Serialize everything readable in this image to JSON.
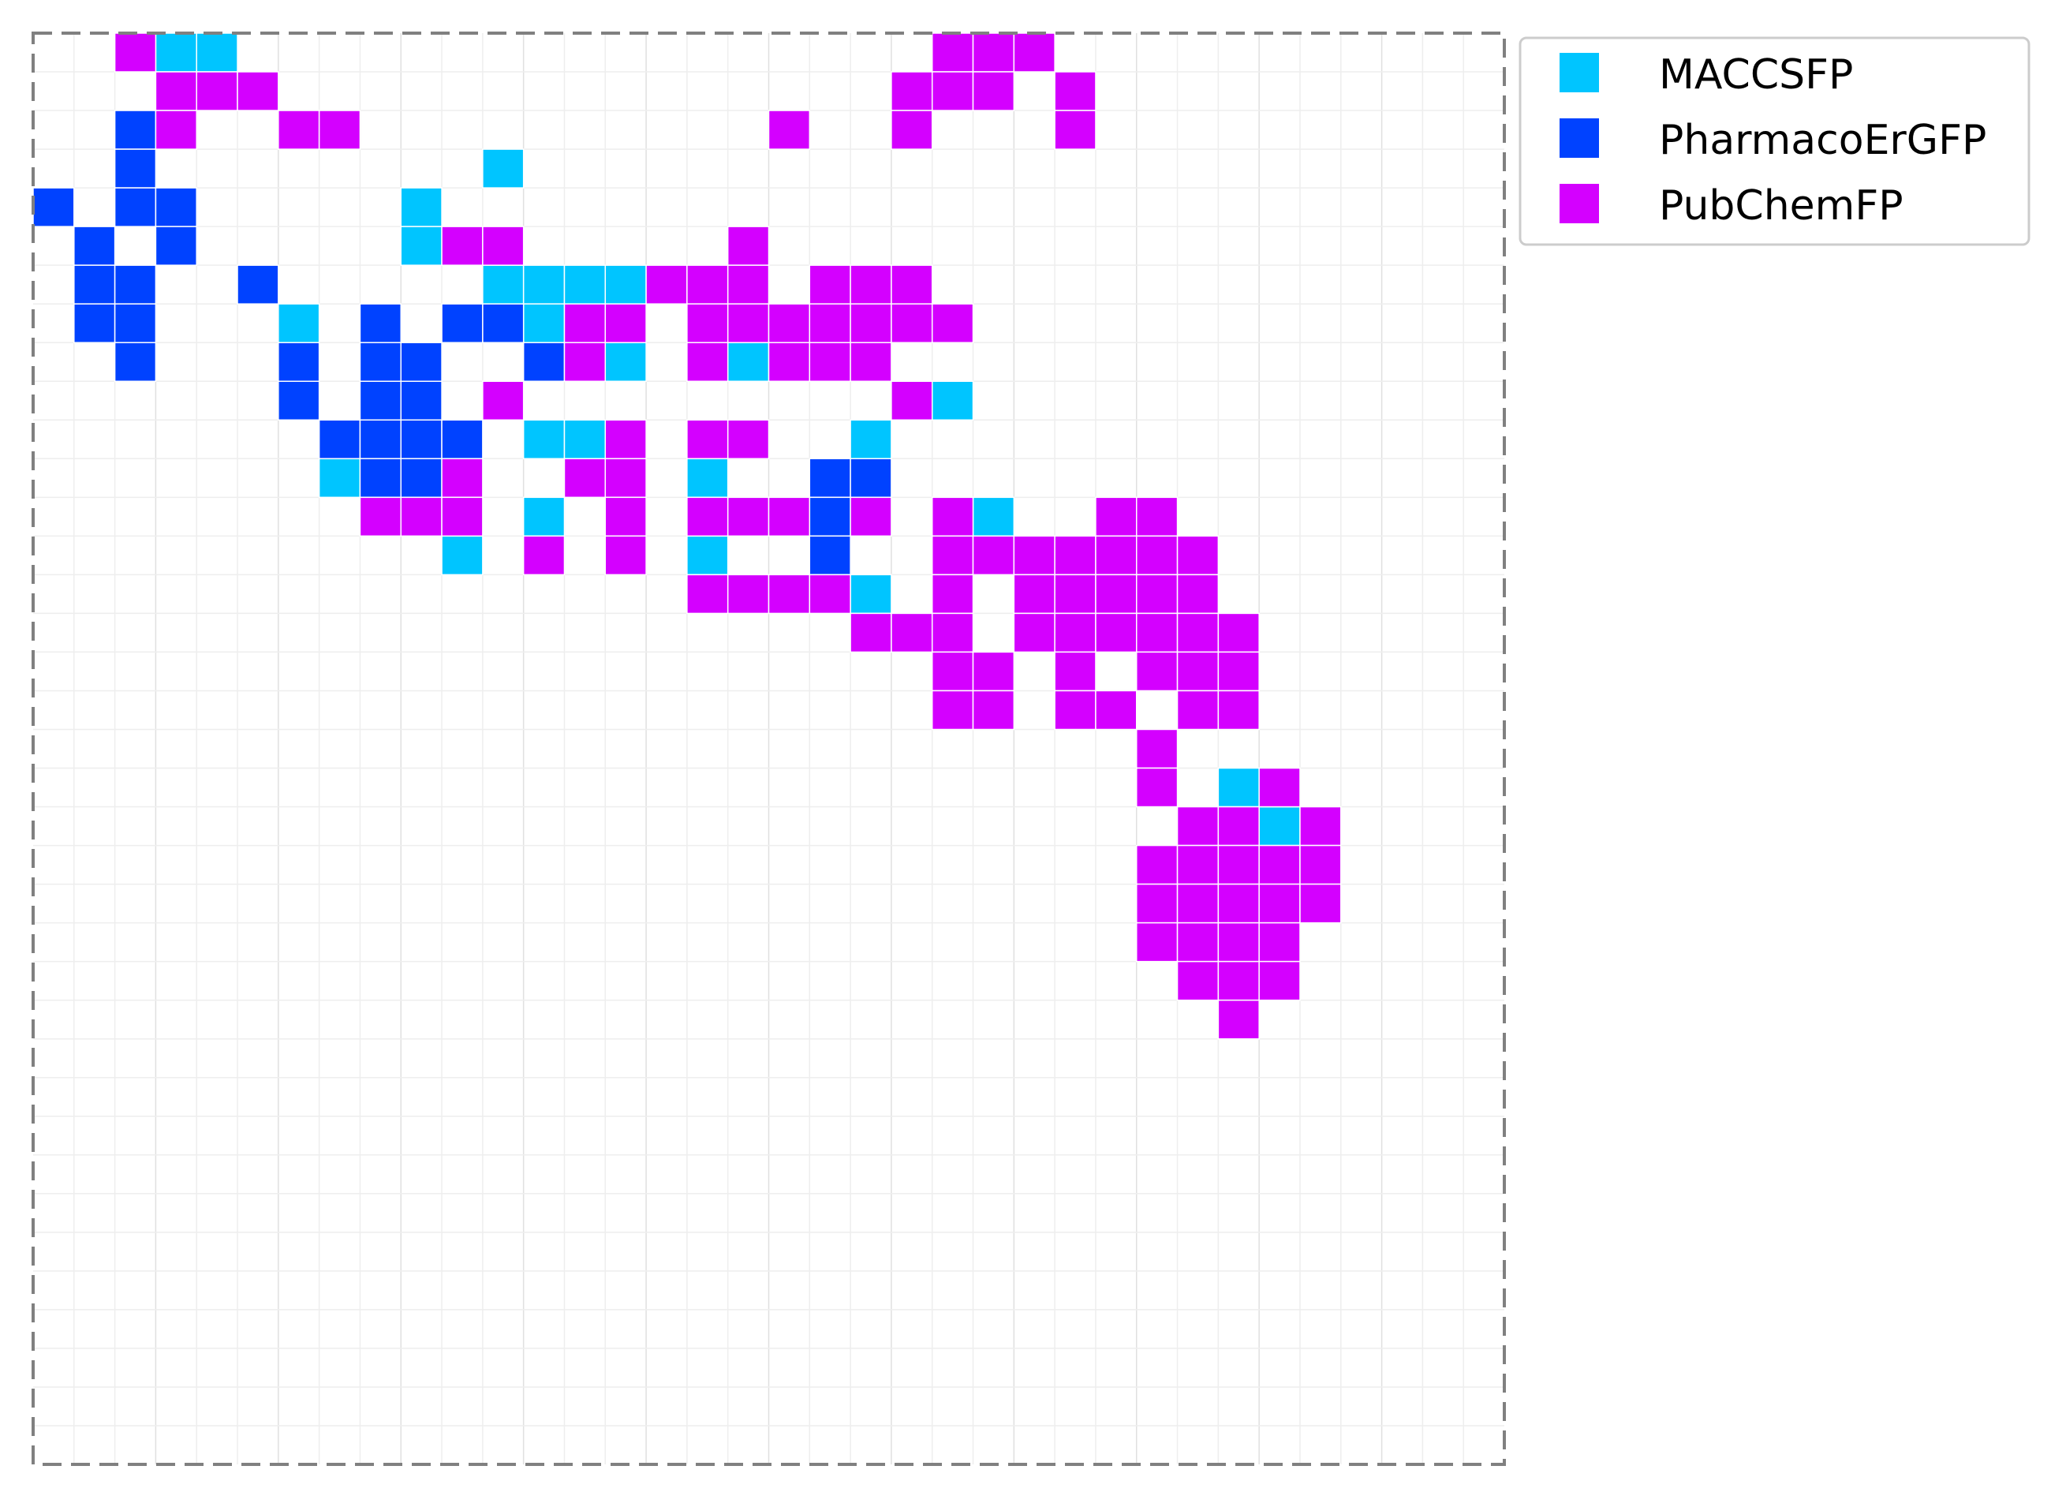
{
  "chart_data": {
    "type": "heatmap",
    "title": "",
    "xlabel": "",
    "ylabel": "",
    "grid_size": [
      36,
      37
    ],
    "grid": true,
    "frame": "dashed",
    "legend_position": "outside-top-right",
    "colors": {
      "MACCSFP": "#00c5ff",
      "PharmacoErGFP": "#0042ff",
      "PubChemFP": "#d400ff"
    },
    "legend": [
      "MACCSFP",
      "PharmacoErGFP",
      "PubChemFP"
    ],
    "cells": {
      "MACCSFP": [
        [
          3,
          0
        ],
        [
          4,
          0
        ],
        [
          11,
          3
        ],
        [
          9,
          4
        ],
        [
          9,
          5
        ],
        [
          11,
          6
        ],
        [
          12,
          6
        ],
        [
          13,
          6
        ],
        [
          14,
          6
        ],
        [
          6,
          7
        ],
        [
          12,
          7
        ],
        [
          14,
          8
        ],
        [
          17,
          8
        ],
        [
          22,
          9
        ],
        [
          12,
          10
        ],
        [
          13,
          10
        ],
        [
          20,
          10
        ],
        [
          7,
          11
        ],
        [
          16,
          11
        ],
        [
          12,
          12
        ],
        [
          23,
          12
        ],
        [
          10,
          13
        ],
        [
          16,
          13
        ],
        [
          20,
          14
        ],
        [
          29,
          19
        ],
        [
          30,
          20
        ]
      ],
      "PharmacoErGFP": [
        [
          2,
          2
        ],
        [
          2,
          3
        ],
        [
          0,
          4
        ],
        [
          2,
          4
        ],
        [
          3,
          4
        ],
        [
          1,
          5
        ],
        [
          3,
          5
        ],
        [
          1,
          6
        ],
        [
          2,
          6
        ],
        [
          5,
          6
        ],
        [
          1,
          7
        ],
        [
          2,
          7
        ],
        [
          8,
          7
        ],
        [
          10,
          7
        ],
        [
          11,
          7
        ],
        [
          2,
          8
        ],
        [
          6,
          8
        ],
        [
          8,
          8
        ],
        [
          9,
          8
        ],
        [
          12,
          8
        ],
        [
          6,
          9
        ],
        [
          8,
          9
        ],
        [
          9,
          9
        ],
        [
          7,
          10
        ],
        [
          8,
          10
        ],
        [
          9,
          10
        ],
        [
          10,
          10
        ],
        [
          8,
          11
        ],
        [
          9,
          11
        ],
        [
          19,
          11
        ],
        [
          20,
          11
        ],
        [
          19,
          12
        ],
        [
          19,
          13
        ]
      ],
      "PubChemFP": [
        [
          2,
          0
        ],
        [
          22,
          0
        ],
        [
          23,
          0
        ],
        [
          24,
          0
        ],
        [
          3,
          1
        ],
        [
          4,
          1
        ],
        [
          5,
          1
        ],
        [
          21,
          1
        ],
        [
          22,
          1
        ],
        [
          23,
          1
        ],
        [
          25,
          1
        ],
        [
          3,
          2
        ],
        [
          6,
          2
        ],
        [
          7,
          2
        ],
        [
          18,
          2
        ],
        [
          21,
          2
        ],
        [
          25,
          2
        ],
        [
          10,
          5
        ],
        [
          11,
          5
        ],
        [
          17,
          5
        ],
        [
          15,
          6
        ],
        [
          16,
          6
        ],
        [
          17,
          6
        ],
        [
          19,
          6
        ],
        [
          20,
          6
        ],
        [
          21,
          6
        ],
        [
          13,
          7
        ],
        [
          14,
          7
        ],
        [
          16,
          7
        ],
        [
          17,
          7
        ],
        [
          18,
          7
        ],
        [
          19,
          7
        ],
        [
          20,
          7
        ],
        [
          21,
          7
        ],
        [
          22,
          7
        ],
        [
          13,
          8
        ],
        [
          16,
          8
        ],
        [
          18,
          8
        ],
        [
          19,
          8
        ],
        [
          20,
          8
        ],
        [
          11,
          9
        ],
        [
          21,
          9
        ],
        [
          14,
          10
        ],
        [
          16,
          10
        ],
        [
          17,
          10
        ],
        [
          10,
          11
        ],
        [
          13,
          11
        ],
        [
          14,
          11
        ],
        [
          8,
          12
        ],
        [
          9,
          12
        ],
        [
          10,
          12
        ],
        [
          14,
          12
        ],
        [
          16,
          12
        ],
        [
          17,
          12
        ],
        [
          18,
          12
        ],
        [
          20,
          12
        ],
        [
          22,
          12
        ],
        [
          26,
          12
        ],
        [
          27,
          12
        ],
        [
          12,
          13
        ],
        [
          14,
          13
        ],
        [
          22,
          13
        ],
        [
          23,
          13
        ],
        [
          24,
          13
        ],
        [
          25,
          13
        ],
        [
          26,
          13
        ],
        [
          27,
          13
        ],
        [
          28,
          13
        ],
        [
          16,
          14
        ],
        [
          17,
          14
        ],
        [
          18,
          14
        ],
        [
          19,
          14
        ],
        [
          22,
          14
        ],
        [
          24,
          14
        ],
        [
          25,
          14
        ],
        [
          26,
          14
        ],
        [
          27,
          14
        ],
        [
          28,
          14
        ],
        [
          20,
          15
        ],
        [
          21,
          15
        ],
        [
          22,
          15
        ],
        [
          24,
          15
        ],
        [
          25,
          15
        ],
        [
          26,
          15
        ],
        [
          27,
          15
        ],
        [
          28,
          15
        ],
        [
          29,
          15
        ],
        [
          22,
          16
        ],
        [
          23,
          16
        ],
        [
          25,
          16
        ],
        [
          27,
          16
        ],
        [
          28,
          16
        ],
        [
          29,
          16
        ],
        [
          22,
          17
        ],
        [
          23,
          17
        ],
        [
          25,
          17
        ],
        [
          26,
          17
        ],
        [
          28,
          17
        ],
        [
          29,
          17
        ],
        [
          27,
          18
        ],
        [
          27,
          19
        ],
        [
          30,
          19
        ],
        [
          28,
          20
        ],
        [
          29,
          20
        ],
        [
          31,
          20
        ],
        [
          27,
          21
        ],
        [
          28,
          21
        ],
        [
          29,
          21
        ],
        [
          30,
          21
        ],
        [
          31,
          21
        ],
        [
          27,
          22
        ],
        [
          28,
          22
        ],
        [
          29,
          22
        ],
        [
          30,
          22
        ],
        [
          31,
          22
        ],
        [
          27,
          23
        ],
        [
          28,
          23
        ],
        [
          29,
          23
        ],
        [
          30,
          23
        ],
        [
          28,
          24
        ],
        [
          29,
          24
        ],
        [
          30,
          24
        ],
        [
          29,
          25
        ]
      ]
    }
  }
}
